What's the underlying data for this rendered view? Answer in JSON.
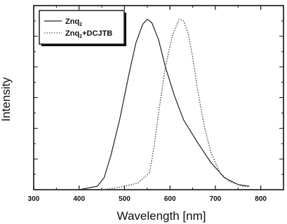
{
  "chart_data": {
    "type": "line",
    "xlabel": "Wavelength [nm]",
    "ylabel": "Intensity",
    "xlim": [
      300,
      850
    ],
    "ylim": [
      0,
      1.08
    ],
    "xticks": [
      300,
      400,
      500,
      600,
      700,
      800
    ],
    "yticks_labeled": false,
    "grid": false,
    "legend_position": "top-left",
    "series": [
      {
        "name": "Znq2",
        "legend_main": "Znq",
        "legend_sub": "2",
        "legend_suffix": "",
        "style": "solid",
        "color": "#222222",
        "x": [
          360,
          400,
          440,
          455,
          470,
          490,
          510,
          525,
          540,
          550,
          560,
          575,
          590,
          610,
          630,
          660,
          690,
          720,
          750,
          775
        ],
        "y": [
          0.0,
          0.0,
          0.02,
          0.07,
          0.2,
          0.42,
          0.68,
          0.86,
          0.97,
          1.0,
          0.98,
          0.88,
          0.72,
          0.55,
          0.41,
          0.28,
          0.16,
          0.07,
          0.03,
          0.02
        ]
      },
      {
        "name": "Znq2+DCJTB",
        "legend_main": "Znq",
        "legend_sub": "2",
        "legend_suffix": "+DCJTB",
        "style": "dotted",
        "color": "#555555",
        "x": [
          450,
          480,
          500,
          530,
          555,
          565,
          575,
          590,
          605,
          620,
          630,
          640,
          650,
          660,
          675,
          690,
          710,
          730,
          760,
          775
        ],
        "y": [
          0.0,
          0.01,
          0.02,
          0.04,
          0.1,
          0.25,
          0.45,
          0.72,
          0.9,
          1.0,
          0.99,
          0.92,
          0.78,
          0.6,
          0.38,
          0.22,
          0.1,
          0.05,
          0.02,
          0.02
        ]
      }
    ]
  }
}
